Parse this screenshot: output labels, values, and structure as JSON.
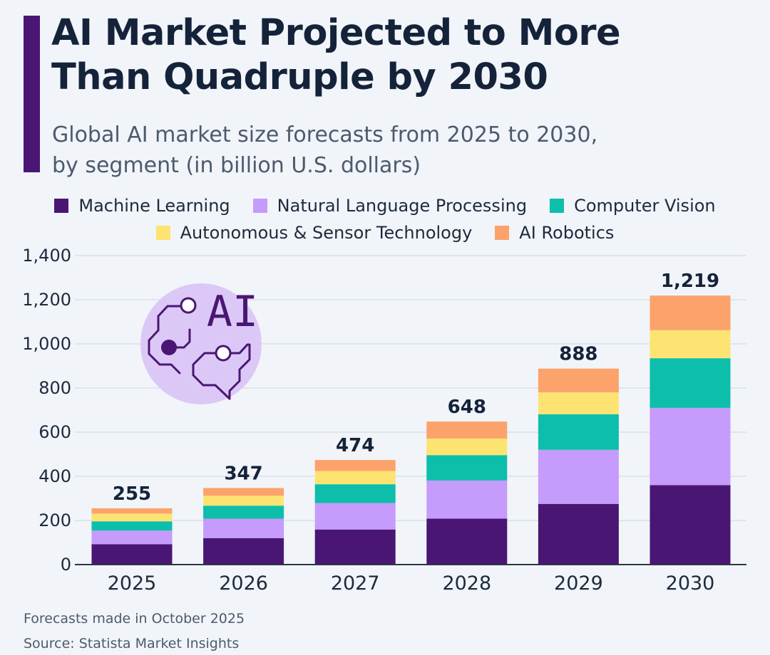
{
  "header": {
    "title_line1": "AI Market Projected to More",
    "title_line2": "Than Quadruple by 2030",
    "subtitle_line1": "Global AI market size forecasts from 2025 to 2030,",
    "subtitle_line2": "by segment (in billion U.S. dollars)",
    "accent_color": "#4a1673"
  },
  "chart_data": {
    "type": "bar",
    "stacked": true,
    "categories": [
      "2025",
      "2026",
      "2027",
      "2028",
      "2029",
      "2030"
    ],
    "series": [
      {
        "name": "Machine Learning",
        "color": "#4a1673",
        "values": [
          92,
          120,
          159,
          208,
          275,
          360
        ]
      },
      {
        "name": "Natural Language Processing",
        "color": "#c59bfb",
        "values": [
          62,
          88,
          120,
          173,
          245,
          350
        ]
      },
      {
        "name": "Computer Vision",
        "color": "#0dbeab",
        "values": [
          42,
          59,
          85,
          115,
          161,
          225
        ]
      },
      {
        "name": "Autonomous & Sensor Technology",
        "color": "#fde472",
        "values": [
          35,
          45,
          60,
          75,
          99,
          127
        ]
      },
      {
        "name": "AI Robotics",
        "color": "#fca36b",
        "values": [
          24,
          35,
          50,
          77,
          108,
          157
        ]
      }
    ],
    "totals": [
      "255",
      "347",
      "474",
      "648",
      "888",
      "1,219"
    ],
    "total_values": [
      255,
      347,
      474,
      648,
      888,
      1219
    ],
    "yticks": [
      "0",
      "200",
      "400",
      "600",
      "800",
      "1,000",
      "1,200",
      "1,400"
    ],
    "ytick_values": [
      0,
      200,
      400,
      600,
      800,
      1000,
      1200,
      1400
    ],
    "ylim": [
      0,
      1400
    ],
    "grid": true,
    "legend_position": "top"
  },
  "illustration": {
    "icon": "ai-brain-circuit-icon",
    "label": "AI",
    "circle_color": "#dcc8f6",
    "line_color": "#4a1673"
  },
  "footer": {
    "note": "Forecasts made in October 2025",
    "source": "Source: Statista Market Insights"
  }
}
